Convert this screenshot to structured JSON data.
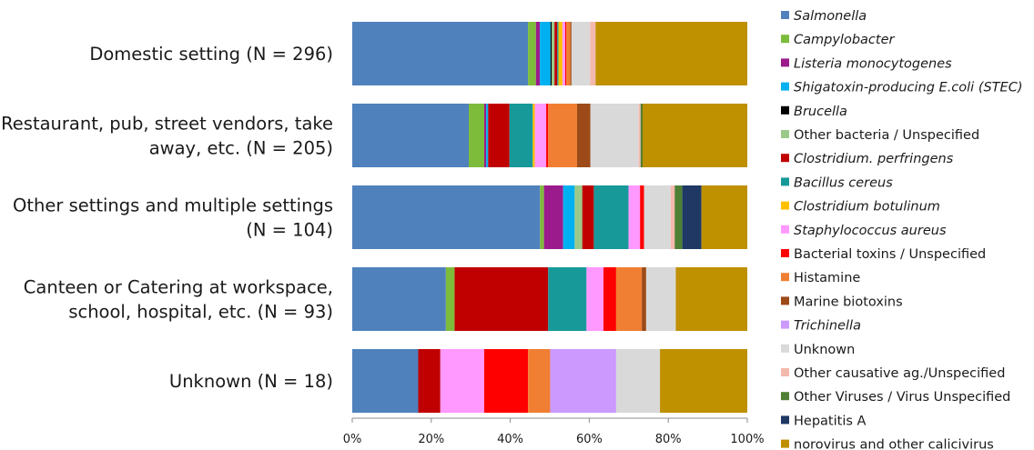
{
  "chart_data": {
    "type": "bar",
    "orientation": "horizontal",
    "stacked": "percent",
    "grid": false,
    "legend_position": "right",
    "xlim": [
      0,
      100
    ],
    "x_ticks": [
      "0%",
      "20%",
      "40%",
      "60%",
      "80%",
      "100%"
    ],
    "categories": [
      [
        "Domestic setting (N = 296)"
      ],
      [
        "Restaurant, pub, street vendors, take",
        "away, etc. (N = 205)"
      ],
      [
        "Other settings and multiple settings",
        "(N = 104)"
      ],
      [
        "Canteen or Catering at workspace,",
        "school, hospital, etc. (N = 93)"
      ],
      [
        "Unknown (N = 18)"
      ]
    ],
    "series": [
      {
        "name": "Salmonella",
        "italic": true,
        "color": "#4f81bd",
        "values": [
          44.5,
          29.5,
          47.1,
          23.7,
          16.7
        ]
      },
      {
        "name": "Campylobacter",
        "italic": true,
        "color": "#7dbb3b",
        "values": [
          2.0,
          3.9,
          1.0,
          2.2,
          0
        ]
      },
      {
        "name": "Listeria monocytogenes",
        "italic": true,
        "color": "#9b1b8c",
        "values": [
          1.0,
          0.5,
          4.8,
          0,
          0
        ]
      },
      {
        "name": "Shigatoxin-producing E.coli (STEC)",
        "italic": true,
        "color": "#00b0f0",
        "values": [
          2.7,
          0.5,
          2.9,
          0,
          0
        ]
      },
      {
        "name": "Brucella",
        "italic": true,
        "color": "#000000",
        "values": [
          0.3,
          0,
          0,
          0,
          0
        ]
      },
      {
        "name": "Other bacteria / Unspecified",
        "italic": false,
        "color": "#9bc98a",
        "values": [
          0.7,
          0,
          1.9,
          0,
          0
        ]
      },
      {
        "name": "Clostridium. perfringens",
        "italic": true,
        "color": "#c00000",
        "values": [
          0.7,
          5.4,
          2.9,
          23.7,
          5.6
        ]
      },
      {
        "name": "Bacillus cereus",
        "italic": true,
        "color": "#17999a",
        "values": [
          0.3,
          5.9,
          8.7,
          9.7,
          0
        ]
      },
      {
        "name": "Clostridium botulinum",
        "italic": true,
        "color": "#ffc000",
        "values": [
          1.0,
          0.5,
          0,
          0,
          0
        ]
      },
      {
        "name": "Staphylococcus aureus",
        "italic": true,
        "color": "#ff99ff",
        "values": [
          0.7,
          2.9,
          2.9,
          4.3,
          11.1
        ]
      },
      {
        "name": "Bacterial toxins / Unspecified",
        "italic": false,
        "color": "#ff0000",
        "values": [
          0.3,
          0.5,
          1.0,
          3.2,
          11.1
        ]
      },
      {
        "name": "Histamine",
        "italic": false,
        "color": "#f07f33",
        "values": [
          1.0,
          7.3,
          0,
          6.5,
          5.6
        ]
      },
      {
        "name": "Marine biotoxins",
        "italic": false,
        "color": "#9c4a17",
        "values": [
          0.3,
          3.4,
          0,
          1.1,
          0
        ]
      },
      {
        "name": "Trichinella",
        "italic": true,
        "color": "#cc99ff",
        "values": [
          0,
          0,
          0,
          0,
          16.7
        ]
      },
      {
        "name": "Unknown",
        "italic": false,
        "color": "#d9d9d9",
        "values": [
          4.7,
          12.2,
          6.7,
          7.5,
          11.1
        ]
      },
      {
        "name": "Other causative ag./Unspecified",
        "italic": false,
        "color": "#f4b9ad",
        "values": [
          1.4,
          0.5,
          1.0,
          0,
          0
        ]
      },
      {
        "name": "Other Viruses / Virus Unspecified",
        "italic": false,
        "color": "#4e7f34",
        "values": [
          0,
          0.5,
          1.9,
          0,
          0
        ]
      },
      {
        "name": "Hepatitis A",
        "italic": false,
        "color": "#1f3864",
        "values": [
          0,
          0,
          4.8,
          0,
          0
        ]
      },
      {
        "name": "norovirus and other calicivirus",
        "italic": false,
        "color": "#bf9000",
        "values": [
          38.4,
          26.5,
          11.5,
          18.1,
          22.1
        ]
      }
    ]
  }
}
